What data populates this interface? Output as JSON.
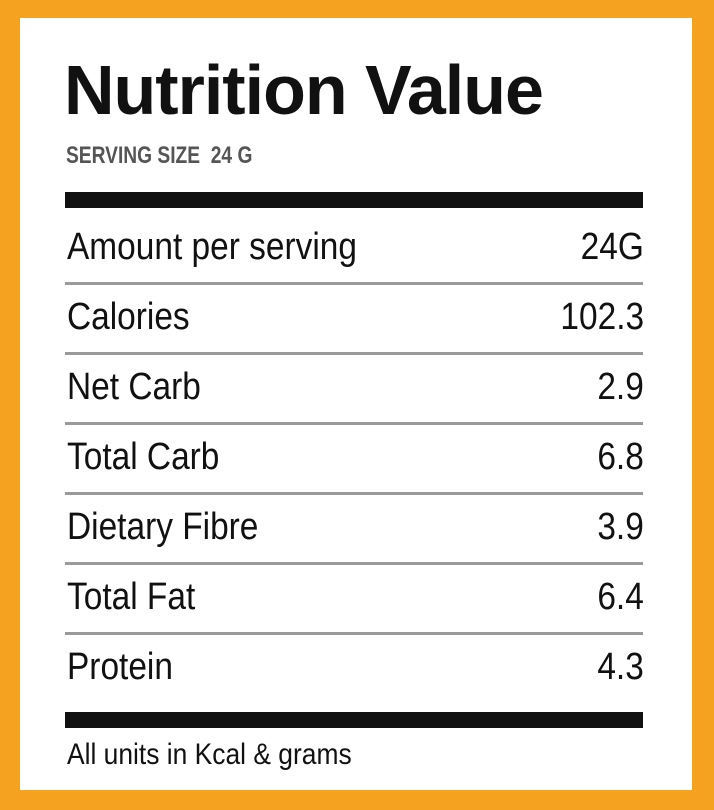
{
  "header": {
    "title": "Nutrition Value",
    "serving_size": "SERVING SIZE  24 G"
  },
  "table": {
    "rows": [
      [
        "Amount per serving",
        "24G"
      ],
      [
        "Calories",
        "102.3"
      ],
      [
        "Net Carb",
        "2.9"
      ],
      [
        "Total Carb",
        "6.8"
      ],
      [
        "Dietary Fibre",
        "3.9"
      ],
      [
        "Total Fat",
        "6.4"
      ],
      [
        "Protein",
        "4.3"
      ]
    ]
  },
  "footer": "All units in Kcal & grams"
}
